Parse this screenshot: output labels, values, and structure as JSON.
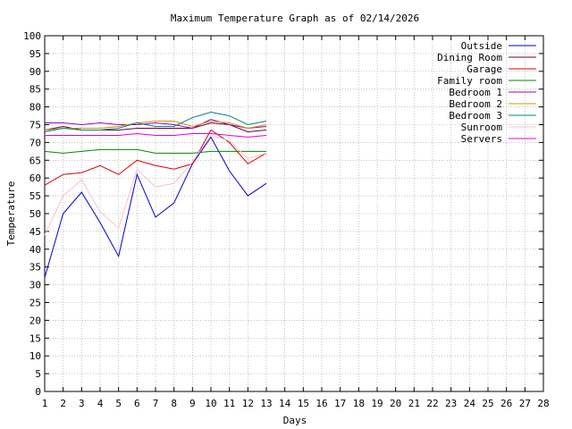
{
  "chart_data": {
    "type": "line",
    "title": "Maximum Temperature Graph as of 02/14/2026",
    "xlabel": "Days",
    "ylabel": "Temperature",
    "xlim": [
      1,
      28
    ],
    "ylim": [
      0,
      100
    ],
    "x_ticks": [
      1,
      2,
      3,
      4,
      5,
      6,
      7,
      8,
      9,
      10,
      11,
      12,
      13,
      14,
      15,
      16,
      17,
      18,
      19,
      20,
      21,
      22,
      23,
      24,
      25,
      26,
      27,
      28
    ],
    "y_ticks": [
      0,
      5,
      10,
      15,
      20,
      25,
      30,
      35,
      40,
      45,
      50,
      55,
      60,
      65,
      70,
      75,
      80,
      85,
      90,
      95,
      100
    ],
    "grid": true,
    "legend_position": "top-right",
    "x": [
      1,
      2,
      3,
      4,
      5,
      6,
      7,
      8,
      9,
      10,
      11,
      12,
      13
    ],
    "series": [
      {
        "name": "Outside",
        "color": "#0000cc",
        "values": [
          32,
          50,
          56,
          47.5,
          38,
          61,
          49,
          53,
          64,
          71.5,
          62,
          55,
          58.5
        ]
      },
      {
        "name": "Dining Room",
        "color": "#660033",
        "values": [
          73.5,
          74.5,
          73.5,
          73.5,
          73.5,
          74,
          74,
          74,
          74,
          75.5,
          75,
          73,
          73.5
        ]
      },
      {
        "name": "Garage",
        "color": "#dd0000",
        "values": [
          58,
          61,
          61.5,
          63.5,
          61,
          65,
          63.5,
          62.5,
          64,
          73.5,
          70,
          64,
          67
        ]
      },
      {
        "name": "Family room",
        "color": "#008800",
        "values": [
          67.5,
          67,
          67.5,
          68,
          68,
          68,
          67,
          67,
          67,
          67.5,
          67.5,
          67.5,
          67.5
        ]
      },
      {
        "name": "Bedroom 1",
        "color": "#9900cc",
        "values": [
          75.5,
          75.5,
          75,
          75.5,
          75,
          75,
          75.5,
          75,
          74,
          76.5,
          75,
          74,
          74.5
        ]
      },
      {
        "name": "Bedroom 2",
        "color": "#cc9900",
        "values": [
          73.5,
          74,
          74,
          74,
          74.5,
          75.5,
          76,
          76,
          74.5,
          76,
          75.5,
          74,
          75
        ]
      },
      {
        "name": "Bedroom 3",
        "color": "#008080",
        "values": [
          73,
          74,
          73.5,
          73.5,
          74,
          75.5,
          74.5,
          74.5,
          77,
          78.5,
          77.5,
          75,
          76
        ]
      },
      {
        "name": "Sunroom",
        "color": "#ffc0cb",
        "values": [
          44,
          55,
          59.5,
          50.5,
          46,
          62.5,
          57.5,
          58.5,
          64.5,
          72,
          70.5,
          65.5,
          67
        ]
      },
      {
        "name": "Servers",
        "color": "#dd00dd",
        "values": [
          72,
          72,
          72,
          72,
          72,
          72.5,
          72,
          72,
          72.5,
          72.5,
          72,
          71.5,
          72
        ]
      }
    ]
  }
}
